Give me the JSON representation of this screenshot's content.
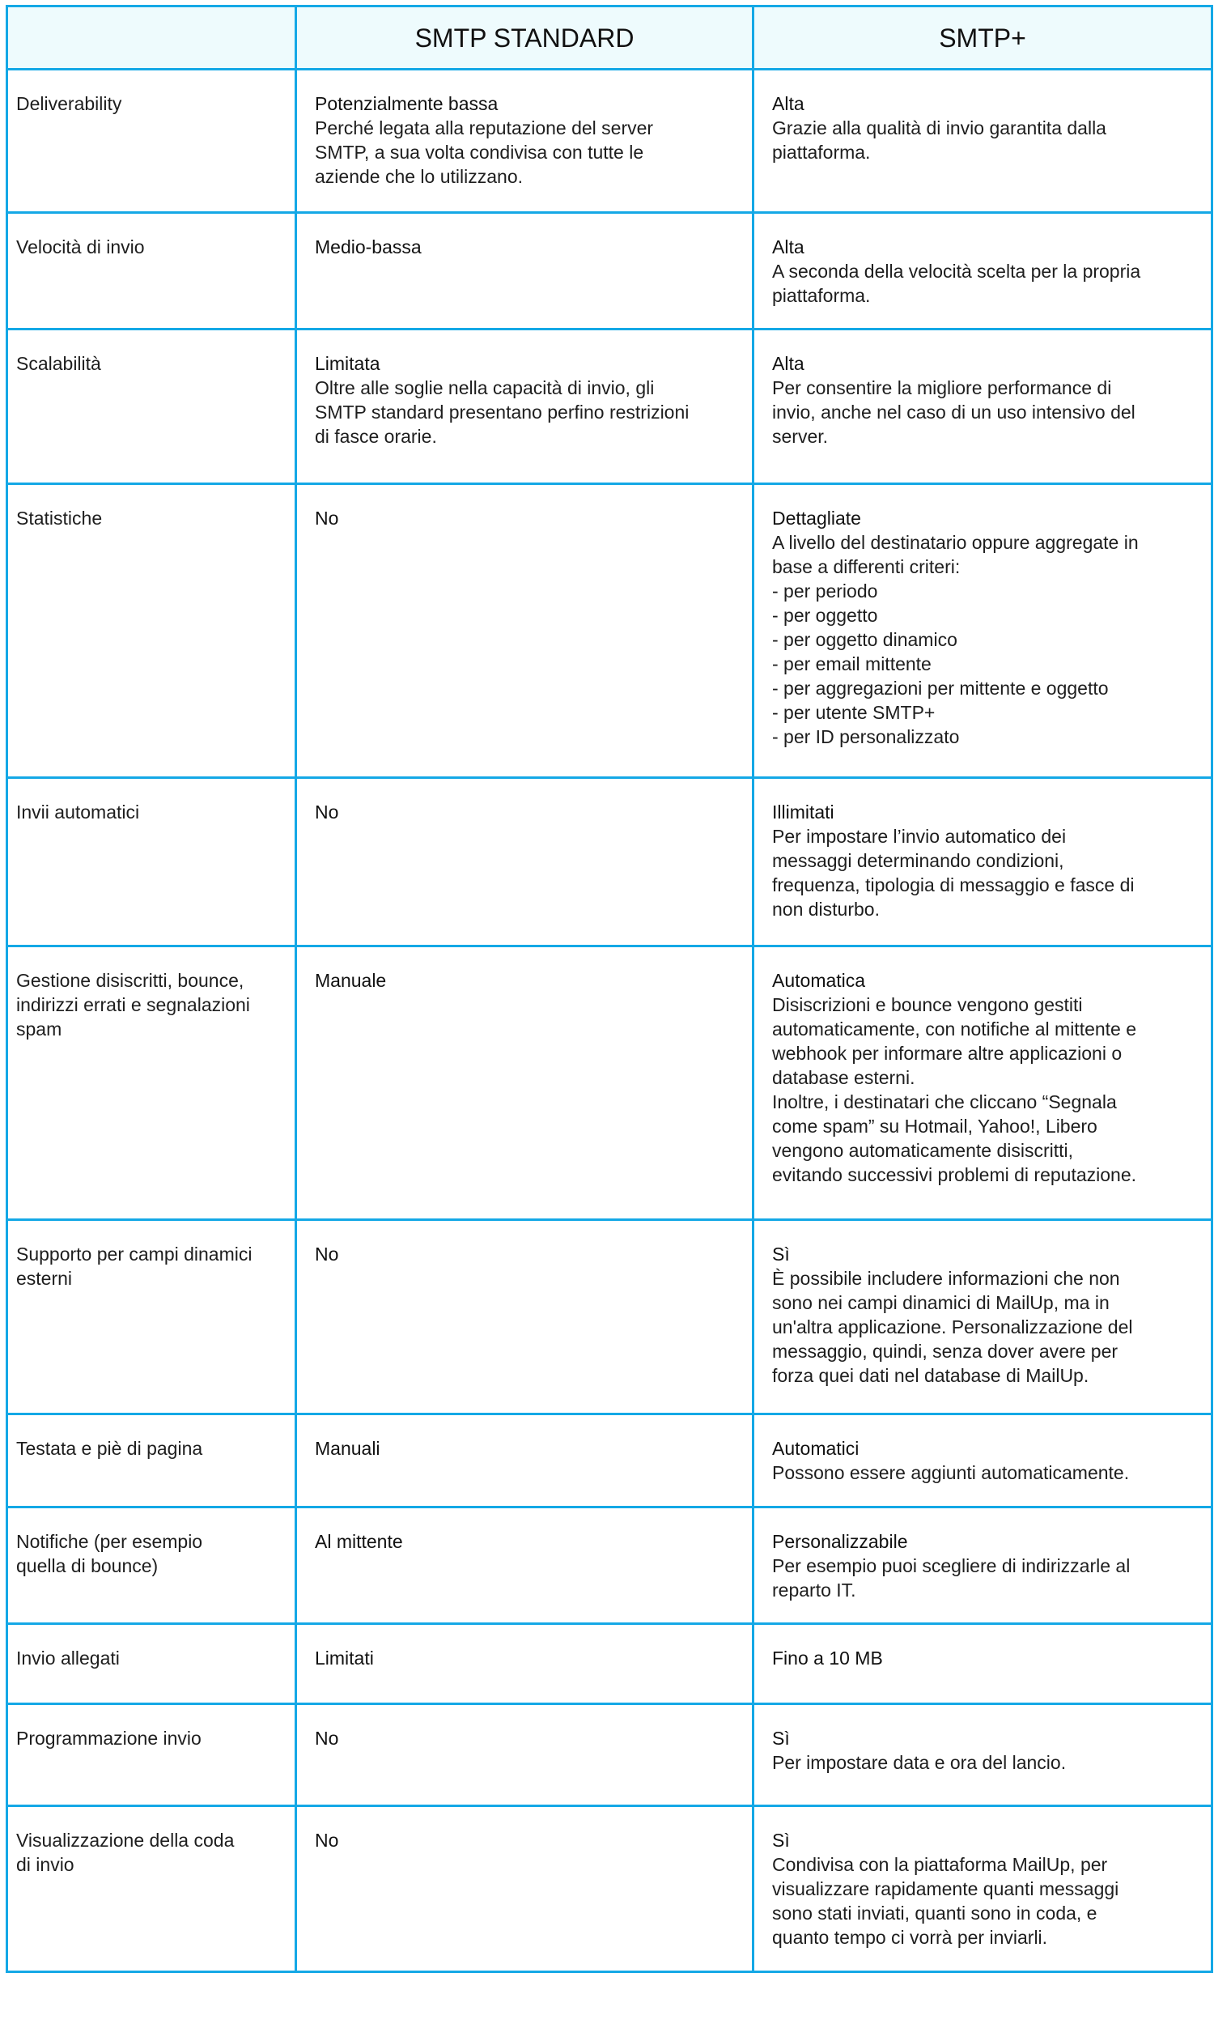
{
  "header": {
    "col1": "",
    "col2": "SMTP STANDARD",
    "col3": "SMTP+"
  },
  "rows": [
    {
      "label": "Deliverability",
      "std_title": "Potenzialmente bassa",
      "std_desc": "Perché legata alla reputazione del server\nSMTP, a sua volta condivisa con tutte le\naziende che lo utilizzano.",
      "plus_title": "Alta",
      "plus_desc": "Grazie alla qualità di invio garantita dalla\npiattaforma."
    },
    {
      "label": "Velocità di invio",
      "std_title": "Medio-bassa",
      "std_desc": "",
      "plus_title": "Alta",
      "plus_desc": "A seconda della velocità scelta per la propria\npiattaforma."
    },
    {
      "label": "Scalabilità",
      "std_title": "Limitata",
      "std_desc": "Oltre alle soglie nella capacità di invio, gli\nSMTP standard presentano perfino restrizioni\ndi fasce orarie.",
      "plus_title": "Alta",
      "plus_desc": "Per consentire la migliore performance di\ninvio, anche nel caso di un uso intensivo del\nserver."
    },
    {
      "label": "Statistiche",
      "std_title": "No",
      "std_desc": "",
      "plus_title": "Dettagliate",
      "plus_desc": "A livello del destinatario oppure aggregate in\nbase a differenti criteri:\n- per periodo\n- per oggetto\n- per oggetto dinamico\n- per email mittente\n- per aggregazioni per mittente e oggetto\n- per utente SMTP+\n- per ID personalizzato"
    },
    {
      "label": "Invii automatici",
      "std_title": "No",
      "std_desc": "",
      "plus_title": "Illimitati",
      "plus_desc": "Per impostare l’invio automatico dei\nmessaggi determinando condizioni,\nfrequenza, tipologia di messaggio e fasce di\nnon disturbo."
    },
    {
      "label": "Gestione disiscritti, bounce,\nindirizzi errati e segnalazioni\nspam",
      "std_title": "Manuale",
      "std_desc": "",
      "plus_title": "Automatica",
      "plus_desc": "Disiscrizioni e bounce vengono gestiti\nautomaticamente, con notifiche al mittente e\nwebhook per informare altre applicazioni o\ndatabase esterni.\nInoltre, i destinatari che cliccano “Segnala\ncome spam” su Hotmail, Yahoo!, Libero\nvengono automaticamente disiscritti,\nevitando successivi problemi di reputazione."
    },
    {
      "label": "Supporto per campi dinamici\nesterni",
      "std_title": "No",
      "std_desc": "",
      "plus_title": "Sì",
      "plus_desc": "È possibile includere informazioni che non\nsono nei campi dinamici di MailUp, ma in\nun'altra applicazione. Personalizzazione del\nmessaggio, quindi, senza dover avere per\nforza quei dati nel database di MailUp."
    },
    {
      "label": "Testata e piè di pagina",
      "std_title": "Manuali",
      "std_desc": "",
      "plus_title": "Automatici",
      "plus_desc": "Possono essere aggiunti automaticamente."
    },
    {
      "label": "Notifiche (per esempio\nquella di bounce)",
      "std_title": "Al mittente",
      "std_desc": "",
      "plus_title": "Personalizzabile",
      "plus_desc": "Per esempio puoi scegliere di indirizzarle al\nreparto IT."
    },
    {
      "label": "Invio allegati",
      "std_title": "Limitati",
      "std_desc": "",
      "plus_title": "Fino a 10 MB",
      "plus_desc": ""
    },
    {
      "label": "Programmazione invio",
      "std_title": "No",
      "std_desc": "",
      "plus_title": "Sì",
      "plus_desc": "Per impostare data e ora del lancio."
    },
    {
      "label": "Visualizzazione della coda\ndi invio",
      "std_title": "No",
      "std_desc": "",
      "plus_title": "Sì",
      "plus_desc": "Condivisa con la piattaforma MailUp, per\nvisualizzare rapidamente quanti messaggi\nsono stati inviati, quanti sono in coda, e\nquanto tempo ci vorrà per inviarli."
    }
  ],
  "colors": {
    "border": "#14a8e6",
    "header_bg": "#eefbfd",
    "text": "#1e1e1e"
  }
}
